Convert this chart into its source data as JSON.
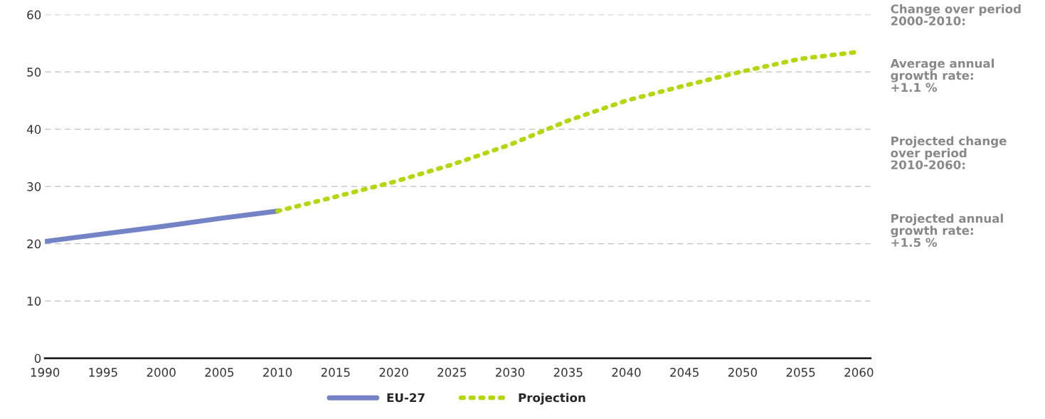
{
  "chart_data": {
    "type": "line",
    "series": [
      {
        "name": "EU-27",
        "color": "#7383c6",
        "line_style": "solid",
        "x": [
          1990,
          1995,
          2000,
          2005,
          2010
        ],
        "values": [
          20.4,
          21.7,
          23.0,
          24.4,
          25.7
        ]
      },
      {
        "name": "Projection",
        "color": "#b5d60a",
        "line_style": "dotted",
        "x": [
          2010,
          2015,
          2020,
          2025,
          2030,
          2035,
          2040,
          2045,
          2050,
          2055,
          2060
        ],
        "values": [
          25.7,
          28.2,
          30.8,
          33.8,
          37.3,
          41.5,
          45.0,
          47.6,
          50.1,
          52.3,
          53.5
        ]
      }
    ],
    "xlim": [
      1990,
      2061
    ],
    "xticks": [
      1990,
      1995,
      2000,
      2005,
      2010,
      2015,
      2020,
      2025,
      2030,
      2035,
      2040,
      2045,
      2050,
      2055,
      2060
    ],
    "ylim": [
      0,
      60
    ],
    "yticks": [
      0,
      10,
      20,
      30,
      40,
      50,
      60
    ],
    "grid": "y",
    "legend": "bottom",
    "annotations": [
      "Change over period\n2000-2010:",
      "Average annual\ngrowth rate:\n+1.1 %",
      "Projected change\nover period\n2010-2060:",
      "Projected annual\ngrowth rate:\n+1.5 %"
    ]
  }
}
